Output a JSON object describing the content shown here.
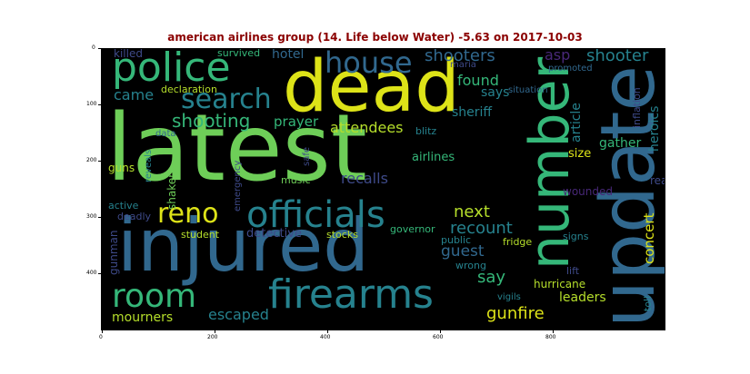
{
  "title": "american airlines group (14. Life below Water) -5.63 on 2017-10-03",
  "x_ticks": [
    "0",
    "200",
    "400",
    "600",
    "800"
  ],
  "y_ticks": [
    "0",
    "100",
    "200",
    "300",
    "400"
  ],
  "words": [
    {
      "text": "latest",
      "color": "#6ece58",
      "vertical": false
    },
    {
      "text": "injured",
      "color": "#31688e",
      "vertical": false
    },
    {
      "text": "dead",
      "color": "#dde318",
      "vertical": false
    },
    {
      "text": "update",
      "color": "#31688e",
      "vertical": true
    },
    {
      "text": "number",
      "color": "#35b779",
      "vertical": true
    },
    {
      "text": "police",
      "color": "#35b779",
      "vertical": false
    },
    {
      "text": "firearms",
      "color": "#26828e",
      "vertical": false
    },
    {
      "text": "officials",
      "color": "#26828e",
      "vertical": false
    },
    {
      "text": "room",
      "color": "#35b779",
      "vertical": false
    },
    {
      "text": "house",
      "color": "#31688e",
      "vertical": false
    },
    {
      "text": "search",
      "color": "#26828e",
      "vertical": false
    },
    {
      "text": "reno",
      "color": "#dde318",
      "vertical": false
    },
    {
      "text": "shooting",
      "color": "#35b779",
      "vertical": false
    },
    {
      "text": "came",
      "color": "#26828e",
      "vertical": false
    },
    {
      "text": "hotel",
      "color": "#31688e",
      "vertical": false
    },
    {
      "text": "killed",
      "color": "#3e4a89",
      "vertical": false
    },
    {
      "text": "survived",
      "color": "#35b779",
      "vertical": false
    },
    {
      "text": "declaration",
      "color": "#b5de2b",
      "vertical": false
    },
    {
      "text": "prayer",
      "color": "#35b779",
      "vertical": false
    },
    {
      "text": "attendees",
      "color": "#b5de2b",
      "vertical": false
    },
    {
      "text": "shooters",
      "color": "#31688e",
      "vertical": false
    },
    {
      "text": "maria",
      "color": "#3e4a89",
      "vertical": false
    },
    {
      "text": "found",
      "color": "#35b779",
      "vertical": false
    },
    {
      "text": "says",
      "color": "#26828e",
      "vertical": false
    },
    {
      "text": "sheriff",
      "color": "#26828e",
      "vertical": false
    },
    {
      "text": "blitz",
      "color": "#26828e",
      "vertical": false
    },
    {
      "text": "asp",
      "color": "#482878",
      "vertical": false
    },
    {
      "text": "shooter",
      "color": "#26828e",
      "vertical": false
    },
    {
      "text": "promoted",
      "color": "#31688e",
      "vertical": false
    },
    {
      "text": "situation",
      "color": "#31688e",
      "vertical": false
    },
    {
      "text": "heroics",
      "color": "#26828e",
      "vertical": true
    },
    {
      "text": "inflation",
      "color": "#3e4a89",
      "vertical": true
    },
    {
      "text": "article",
      "color": "#26828e",
      "vertical": true
    },
    {
      "text": "gather",
      "color": "#35b779",
      "vertical": false
    },
    {
      "text": "size",
      "color": "#dde318",
      "vertical": false
    },
    {
      "text": "data",
      "color": "#31688e",
      "vertical": false
    },
    {
      "text": "guns",
      "color": "#b5de2b",
      "vertical": false
    },
    {
      "text": "reveals",
      "color": "#26828e",
      "vertical": true
    },
    {
      "text": "safe",
      "color": "#3e4a89",
      "vertical": true
    },
    {
      "text": "airlines",
      "color": "#35b779",
      "vertical": false
    },
    {
      "text": "recalls",
      "color": "#3e4a89",
      "vertical": false
    },
    {
      "text": "shaken",
      "color": "#6ece58",
      "vertical": true
    },
    {
      "text": "emergency",
      "color": "#3e4a89",
      "vertical": true
    },
    {
      "text": "music",
      "color": "#6ece58",
      "vertical": false
    },
    {
      "text": "real",
      "color": "#3e4a89",
      "vertical": false
    },
    {
      "text": "wounded",
      "color": "#482878",
      "vertical": false
    },
    {
      "text": "concert",
      "color": "#dde318",
      "vertical": true
    },
    {
      "text": "active",
      "color": "#26828e",
      "vertical": false
    },
    {
      "text": "deadly",
      "color": "#3e4a89",
      "vertical": false
    },
    {
      "text": "next",
      "color": "#b5de2b",
      "vertical": false
    },
    {
      "text": "recount",
      "color": "#26828e",
      "vertical": false
    },
    {
      "text": "gunman",
      "color": "#3e4a89",
      "vertical": true
    },
    {
      "text": "detective",
      "color": "#3e4a89",
      "vertical": false
    },
    {
      "text": "stocks",
      "color": "#b5de2b",
      "vertical": false
    },
    {
      "text": "governor",
      "color": "#35b779",
      "vertical": false
    },
    {
      "text": "student",
      "color": "#b5de2b",
      "vertical": false
    },
    {
      "text": "public",
      "color": "#26828e",
      "vertical": false
    },
    {
      "text": "fridge",
      "color": "#b5de2b",
      "vertical": false
    },
    {
      "text": "guest",
      "color": "#31688e",
      "vertical": false
    },
    {
      "text": "signs",
      "color": "#26828e",
      "vertical": false
    },
    {
      "text": "wrong",
      "color": "#26828e",
      "vertical": false
    },
    {
      "text": "lift",
      "color": "#3e4a89",
      "vertical": false
    },
    {
      "text": "say",
      "color": "#35b779",
      "vertical": false
    },
    {
      "text": "hurricane",
      "color": "#b5de2b",
      "vertical": false
    },
    {
      "text": "leaders",
      "color": "#b5de2b",
      "vertical": false
    },
    {
      "text": "toll",
      "color": "#26828e",
      "vertical": true
    },
    {
      "text": "vigils",
      "color": "#26828e",
      "vertical": false
    },
    {
      "text": "mourners",
      "color": "#b5de2b",
      "vertical": false
    },
    {
      "text": "escaped",
      "color": "#26828e",
      "vertical": false
    },
    {
      "text": "gunfire",
      "color": "#dde318",
      "vertical": false
    }
  ]
}
